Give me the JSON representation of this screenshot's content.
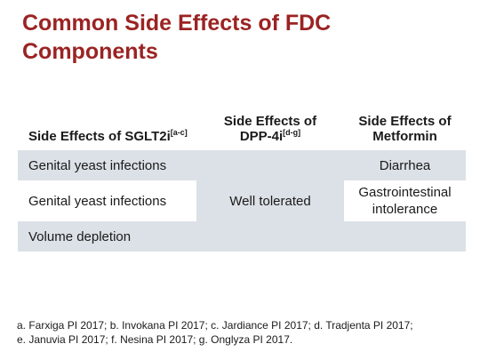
{
  "title_line1": "Common Side Effects of FDC",
  "title_line2": "Components",
  "table": {
    "headers": {
      "col1_text": "Side Effects of SGLT2i",
      "col1_sup": "[a-c]",
      "col2_line1": "Side Effects of",
      "col2_text": "DPP-4i",
      "col2_sup": "[d-g]",
      "col3_line1": "Side Effects of",
      "col3_line2": "Metformin"
    },
    "sglt2i": [
      "Genital yeast infections",
      "Genital yeast infections",
      "Volume depletion"
    ],
    "dpp4i": "Well tolerated",
    "metformin": [
      "Diarrhea",
      "Gastrointestinal intolerance"
    ]
  },
  "references": [
    "a. Farxiga PI 2017; b. Invokana PI 2017; c. Jardiance PI 2017; d. Tradjenta PI 2017;",
    "e. Januvia PI 2017; f. Nesina PI 2017; g. Onglyza PI 2017."
  ],
  "colors": {
    "title": "#9b2323",
    "row_shade": "#dce1e7",
    "header_rule": "#5a5a5a"
  }
}
